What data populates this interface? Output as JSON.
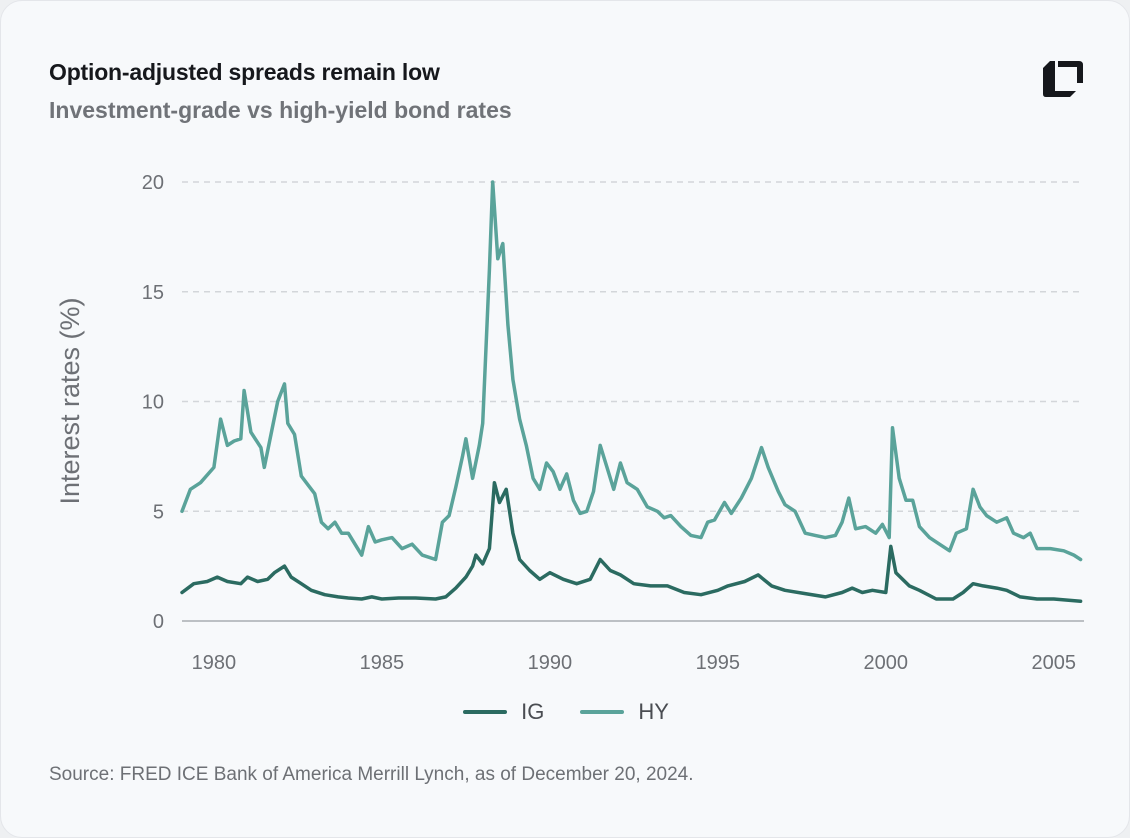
{
  "header": {
    "title": "Option-adjusted spreads remain low",
    "subtitle": "Investment-grade vs high-yield bond rates",
    "logo": "brand-logo-icon"
  },
  "source": "Source: FRED ICE Bank of America Merrill Lynch, as of December 20, 2024.",
  "chart_data": {
    "type": "line",
    "title": "Option-adjusted spreads remain low",
    "subtitle": "Investment-grade vs high-yield bond rates",
    "xlabel": "",
    "ylabel": "Interest rates (%)",
    "xlim": [
      1979.05,
      2005.9
    ],
    "ylim": [
      0,
      20
    ],
    "x_ticks": [
      "1980",
      "1985",
      "1990",
      "1995",
      "2000",
      "2005"
    ],
    "y_ticks": [
      "0",
      "5",
      "10",
      "15",
      "20"
    ],
    "grid": "horizontal dashed",
    "legend": "bottom",
    "series": [
      {
        "name": "IG",
        "color": "#2b6b61",
        "x": [
          1979.0,
          1979.4,
          1979.8,
          1980.1,
          1980.4,
          1980.8,
          1981.0,
          1981.3,
          1981.6,
          1981.8,
          1982.1,
          1982.3,
          1982.6,
          1982.9,
          1983.3,
          1983.7,
          1984.0,
          1984.4,
          1984.7,
          1985.0,
          1985.5,
          1986.0,
          1986.6,
          1986.9,
          1987.2,
          1987.5,
          1987.7,
          1987.8,
          1988.0,
          1988.2,
          1988.35,
          1988.5,
          1988.7,
          1988.9,
          1989.1,
          1989.4,
          1989.7,
          1990.0,
          1990.4,
          1990.8,
          1991.2,
          1991.5,
          1991.8,
          1992.1,
          1992.5,
          1993.0,
          1993.5,
          1994.0,
          1994.5,
          1995.0,
          1995.3,
          1995.8,
          1996.2,
          1996.6,
          1997.0,
          1997.6,
          1998.2,
          1998.7,
          1999.0,
          1999.3,
          1999.6,
          2000.0,
          2000.15,
          2000.3,
          2000.7,
          2001.0,
          2001.5,
          2002.0,
          2002.3,
          2002.6,
          2002.9,
          2003.3,
          2003.6,
          2004.0,
          2004.5,
          2005.0,
          2005.8
        ],
        "values": [
          1.3,
          1.7,
          1.8,
          2.0,
          1.8,
          1.7,
          2.0,
          1.8,
          1.9,
          2.2,
          2.5,
          2.0,
          1.7,
          1.4,
          1.2,
          1.1,
          1.05,
          1.0,
          1.1,
          1.0,
          1.05,
          1.05,
          1.0,
          1.1,
          1.5,
          2.0,
          2.5,
          3.0,
          2.6,
          3.3,
          6.3,
          5.4,
          6.0,
          4.0,
          2.8,
          2.3,
          1.9,
          2.2,
          1.9,
          1.7,
          1.9,
          2.8,
          2.3,
          2.1,
          1.7,
          1.6,
          1.6,
          1.3,
          1.2,
          1.4,
          1.6,
          1.8,
          2.1,
          1.6,
          1.4,
          1.25,
          1.1,
          1.3,
          1.5,
          1.3,
          1.4,
          1.3,
          3.4,
          2.2,
          1.6,
          1.4,
          1.0,
          1.0,
          1.3,
          1.7,
          1.6,
          1.5,
          1.4,
          1.1,
          1.0,
          1.0,
          0.9
        ]
      },
      {
        "name": "HY",
        "color": "#5aa39a",
        "x": [
          1979.0,
          1979.3,
          1979.6,
          1980.0,
          1980.2,
          1980.4,
          1980.6,
          1980.8,
          1980.9,
          1981.1,
          1981.4,
          1981.5,
          1981.7,
          1981.9,
          1982.1,
          1982.2,
          1982.4,
          1982.6,
          1982.8,
          1983.0,
          1983.2,
          1983.4,
          1983.6,
          1983.8,
          1984.0,
          1984.2,
          1984.4,
          1984.6,
          1984.8,
          1985.0,
          1985.3,
          1985.6,
          1985.9,
          1986.2,
          1986.6,
          1986.8,
          1987.0,
          1987.2,
          1987.4,
          1987.5,
          1987.7,
          1987.9,
          1988.0,
          1988.2,
          1988.3,
          1988.45,
          1988.6,
          1988.75,
          1988.9,
          1989.1,
          1989.3,
          1989.5,
          1989.7,
          1989.9,
          1990.1,
          1990.3,
          1990.5,
          1990.7,
          1990.9,
          1991.1,
          1991.3,
          1991.5,
          1991.7,
          1991.9,
          1992.1,
          1992.3,
          1992.6,
          1992.9,
          1993.2,
          1993.4,
          1993.6,
          1993.9,
          1994.2,
          1994.5,
          1994.7,
          1994.9,
          1995.2,
          1995.4,
          1995.7,
          1996.0,
          1996.3,
          1996.5,
          1996.8,
          1997.0,
          1997.3,
          1997.6,
          1997.9,
          1998.2,
          1998.5,
          1998.7,
          1998.9,
          1999.1,
          1999.4,
          1999.7,
          1999.9,
          2000.1,
          2000.2,
          2000.4,
          2000.6,
          2000.8,
          2001.0,
          2001.3,
          2001.6,
          2001.9,
          2002.1,
          2002.4,
          2002.6,
          2002.8,
          2003.0,
          2003.3,
          2003.6,
          2003.8,
          2004.1,
          2004.3,
          2004.5,
          2004.9,
          2005.3,
          2005.6,
          2005.8
        ],
        "values": [
          5.0,
          6.0,
          6.3,
          7.0,
          9.2,
          8.0,
          8.2,
          8.3,
          10.5,
          8.6,
          7.9,
          7.0,
          8.5,
          10.0,
          10.8,
          9.0,
          8.5,
          6.6,
          6.2,
          5.8,
          4.5,
          4.2,
          4.5,
          4.0,
          4.0,
          3.5,
          3.0,
          4.3,
          3.6,
          3.7,
          3.8,
          3.3,
          3.5,
          3.0,
          2.8,
          4.5,
          4.8,
          6.1,
          7.5,
          8.3,
          6.5,
          8.0,
          9.0,
          16.0,
          20.0,
          16.5,
          17.2,
          13.5,
          11.0,
          9.2,
          8.0,
          6.5,
          6.0,
          7.2,
          6.8,
          6.0,
          6.7,
          5.5,
          4.9,
          5.0,
          5.9,
          8.0,
          7.0,
          6.0,
          7.2,
          6.3,
          6.0,
          5.2,
          5.0,
          4.7,
          4.8,
          4.3,
          3.9,
          3.8,
          4.5,
          4.6,
          5.4,
          4.9,
          5.6,
          6.5,
          7.9,
          7.0,
          5.9,
          5.3,
          5.0,
          4.0,
          3.9,
          3.8,
          3.9,
          4.5,
          5.6,
          4.2,
          4.3,
          4.0,
          4.4,
          3.8,
          8.8,
          6.5,
          5.5,
          5.5,
          4.3,
          3.8,
          3.5,
          3.2,
          4.0,
          4.2,
          6.0,
          5.2,
          4.8,
          4.5,
          4.7,
          4.0,
          3.8,
          4.0,
          3.3,
          3.3,
          3.2,
          3.0,
          2.8
        ]
      }
    ]
  }
}
